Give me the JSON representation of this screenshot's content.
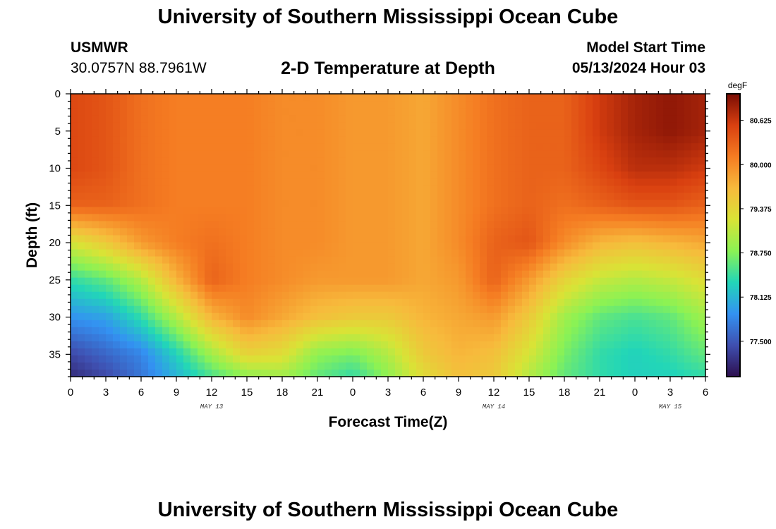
{
  "header": {
    "title": "University of Southern Mississippi Ocean Cube",
    "station_name": "USMWR",
    "station_coords": "30.0757N  88.7961W",
    "plot_title": "2-D Temperature at Depth",
    "start_label": "Model Start Time",
    "start_value": "05/13/2024 Hour 03"
  },
  "footer": {
    "title": "University of Southern Mississippi Ocean Cube"
  },
  "chart_data": {
    "type": "heatmap",
    "title": "2-D Temperature at Depth",
    "xlabel": "Forecast Time(Z)",
    "ylabel": "Depth (ft)",
    "x_hours": [
      0,
      54
    ],
    "y_depth_ft": [
      0,
      38
    ],
    "x_ticks": [
      "0",
      "3",
      "6",
      "9",
      "12",
      "15",
      "18",
      "21",
      "0",
      "3",
      "6",
      "9",
      "12",
      "15",
      "18",
      "21",
      "0",
      "3",
      "6"
    ],
    "y_ticks": [
      0,
      5,
      10,
      15,
      20,
      25,
      30,
      35
    ],
    "date_labels": [
      {
        "label": "MAY 13",
        "hour": 12
      },
      {
        "label": "MAY 14",
        "hour": 36
      },
      {
        "label": "MAY 15",
        "hour": 51
      }
    ],
    "colorbar": {
      "unit": "degF",
      "range": [
        77.0,
        81.0
      ],
      "ticks": [
        "80.625",
        "80.000",
        "79.375",
        "78.750",
        "78.125",
        "77.500"
      ],
      "tick_values": [
        80.625,
        80.0,
        79.375,
        78.75,
        78.125,
        77.5
      ],
      "colors": [
        "#2d0f4e",
        "#3f4fb0",
        "#3392f2",
        "#22d6b8",
        "#8bf254",
        "#d9e336",
        "#f7ba3c",
        "#f57c22",
        "#d94010",
        "#7a0c04"
      ]
    },
    "x_samples_hour": [
      0,
      3,
      6,
      9,
      12,
      15,
      18,
      21,
      24,
      27,
      30,
      33,
      36,
      39,
      42,
      45,
      48,
      51,
      54
    ],
    "depth_samples_ft": [
      0,
      5,
      10,
      15,
      20,
      25,
      30,
      35,
      38
    ],
    "values_degF": [
      [
        80.5,
        80.4,
        80.2,
        80.1,
        80.1,
        80.1,
        80.0,
        80.0,
        79.9,
        79.9,
        79.8,
        80.0,
        80.2,
        80.3,
        80.3,
        80.6,
        80.8,
        80.9,
        80.8
      ],
      [
        80.5,
        80.4,
        80.2,
        80.1,
        80.1,
        80.1,
        80.0,
        80.0,
        79.9,
        79.9,
        79.8,
        80.0,
        80.2,
        80.3,
        80.3,
        80.6,
        80.8,
        80.9,
        80.8
      ],
      [
        80.5,
        80.4,
        80.2,
        80.1,
        80.1,
        80.1,
        80.0,
        80.0,
        79.9,
        79.9,
        79.8,
        80.0,
        80.2,
        80.3,
        80.3,
        80.5,
        80.7,
        80.7,
        80.6
      ],
      [
        80.3,
        80.3,
        80.2,
        80.1,
        80.1,
        80.1,
        80.0,
        80.0,
        79.9,
        79.9,
        79.8,
        80.0,
        80.2,
        80.3,
        80.2,
        80.3,
        80.4,
        80.4,
        80.3
      ],
      [
        79.2,
        79.5,
        79.9,
        80.1,
        80.2,
        80.1,
        80.0,
        80.0,
        79.9,
        79.9,
        79.8,
        80.0,
        80.3,
        80.4,
        80.0,
        79.7,
        79.6,
        79.7,
        79.8
      ],
      [
        78.4,
        78.6,
        79.0,
        79.7,
        80.3,
        80.1,
        80.0,
        79.9,
        79.9,
        79.9,
        79.8,
        79.9,
        80.3,
        79.9,
        79.4,
        79.1,
        79.0,
        79.1,
        79.3
      ],
      [
        77.9,
        78.0,
        78.4,
        79.0,
        79.7,
        80.0,
        79.8,
        79.6,
        79.5,
        79.5,
        79.7,
        79.8,
        79.9,
        79.5,
        78.9,
        78.6,
        78.5,
        78.6,
        78.9
      ],
      [
        77.4,
        77.6,
        77.8,
        78.3,
        78.9,
        79.4,
        79.3,
        78.8,
        78.7,
        79.0,
        79.5,
        79.7,
        79.6,
        79.2,
        78.7,
        78.4,
        78.3,
        78.4,
        78.6
      ],
      [
        77.2,
        77.4,
        77.7,
        78.1,
        78.5,
        78.8,
        78.9,
        78.6,
        78.4,
        78.8,
        79.3,
        79.6,
        79.5,
        79.0,
        78.6,
        78.4,
        78.3,
        78.3,
        78.4
      ]
    ]
  }
}
